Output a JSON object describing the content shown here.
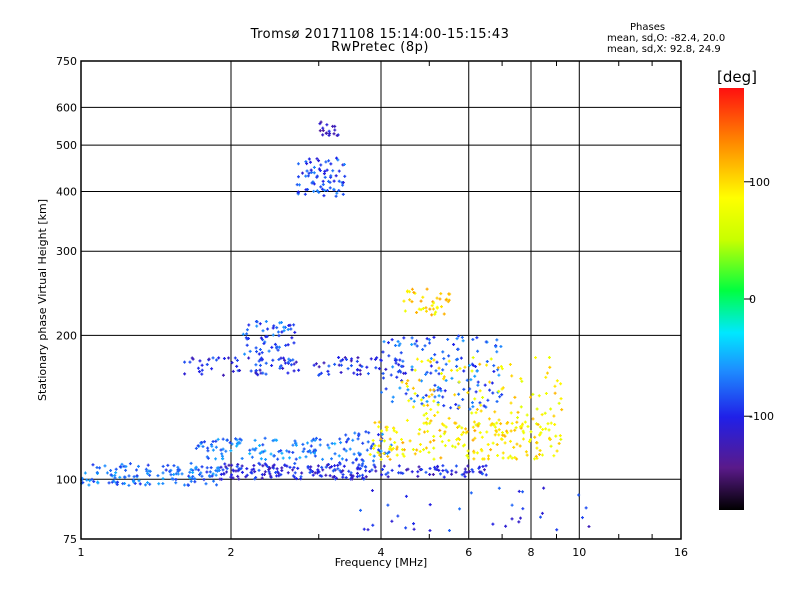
{
  "header": {
    "title_line1": "Tromsø 20171108 15:14:00-15:15:43",
    "title_line2": "RwPretec (8p)"
  },
  "stats": {
    "heading": "Phases",
    "line_o": "mean, sd,O: -82.4, 20.0",
    "line_x": "mean, sd,X: 92.8, 24.9"
  },
  "colorbar": {
    "unit": "[deg]",
    "ticks": [
      {
        "value": 100,
        "label": "100"
      },
      {
        "value": 0,
        "label": "0"
      },
      {
        "value": -100,
        "label": "-100"
      }
    ],
    "range": [
      -180,
      180
    ],
    "colormap": [
      "#000000",
      "#5a1a8a",
      "#2020e8",
      "#1e8cff",
      "#00e8ff",
      "#00ff40",
      "#c8ff00",
      "#ffff00",
      "#ff8a00",
      "#ff1010"
    ]
  },
  "chart_data": {
    "type": "scatter",
    "xlabel": "Frequency [MHz]",
    "ylabel": "Stationary phase Virtual Height [km]",
    "x_scale": "log",
    "y_scale": "log",
    "xlim": [
      1,
      16
    ],
    "ylim": [
      75,
      750
    ],
    "x_ticks": [
      {
        "value": 1,
        "label": "1"
      },
      {
        "value": 2,
        "label": "2"
      },
      {
        "value": 4,
        "label": "4"
      },
      {
        "value": 6,
        "label": "6"
      },
      {
        "value": 8,
        "label": "8"
      },
      {
        "value": 10,
        "label": "10"
      },
      {
        "value": 16,
        "label": "16"
      }
    ],
    "y_ticks": [
      {
        "value": 75,
        "label": "75"
      },
      {
        "value": 100,
        "label": "100"
      },
      {
        "value": 200,
        "label": "200"
      },
      {
        "value": 300,
        "label": "300"
      },
      {
        "value": 400,
        "label": "400"
      },
      {
        "value": 500,
        "label": "500"
      },
      {
        "value": 600,
        "label": "600"
      },
      {
        "value": 750,
        "label": "750"
      }
    ],
    "grid": true,
    "clusters": [
      {
        "name": "",
        "x_range": [
          1.0,
          1.9
        ],
        "y_range": [
          97,
          108
        ],
        "phase": -70,
        "count": 140
      },
      {
        "name": "",
        "x_range": [
          1.9,
          3.9
        ],
        "y_range": [
          100,
          108
        ],
        "phase": -100,
        "count": 160
      },
      {
        "name": "",
        "x_range": [
          3.9,
          6.6
        ],
        "y_range": [
          101,
          107
        ],
        "phase": -100,
        "count": 60
      },
      {
        "name": "",
        "x_range": [
          1.7,
          3.3
        ],
        "y_range": [
          110,
          122
        ],
        "phase": -65,
        "count": 110
      },
      {
        "name": "",
        "x_range": [
          3.3,
          4.2
        ],
        "y_range": [
          108,
          126
        ],
        "phase": -75,
        "count": 50
      },
      {
        "name": "",
        "x_range": [
          3.8,
          9.2
        ],
        "y_range": [
          110,
          132
        ],
        "phase": 105,
        "count": 190
      },
      {
        "name": "",
        "x_range": [
          1.6,
          4.5
        ],
        "y_range": [
          165,
          180
        ],
        "phase": -100,
        "count": 110
      },
      {
        "name": "",
        "x_range": [
          2.1,
          2.7
        ],
        "y_range": [
          170,
          215
        ],
        "phase": -80,
        "count": 70
      },
      {
        "name": "",
        "x_range": [
          4.0,
          7.0
        ],
        "y_range": [
          140,
          200
        ],
        "phase": -75,
        "count": 140
      },
      {
        "name": "",
        "x_range": [
          4.4,
          9.5
        ],
        "y_range": [
          125,
          180
        ],
        "phase": 100,
        "count": 120
      },
      {
        "name": "",
        "x_range": [
          4.4,
          5.5
        ],
        "y_range": [
          220,
          250
        ],
        "phase": 110,
        "count": 40
      },
      {
        "name": "",
        "x_range": [
          2.7,
          3.4
        ],
        "y_range": [
          390,
          470
        ],
        "phase": -85,
        "count": 75
      },
      {
        "name": "",
        "x_range": [
          3.0,
          3.3
        ],
        "y_range": [
          520,
          560
        ],
        "phase": -110,
        "count": 18
      },
      {
        "name": "",
        "x_range": [
          3.6,
          10.5
        ],
        "y_range": [
          78,
          96
        ],
        "phase": -95,
        "count": 35
      }
    ]
  }
}
